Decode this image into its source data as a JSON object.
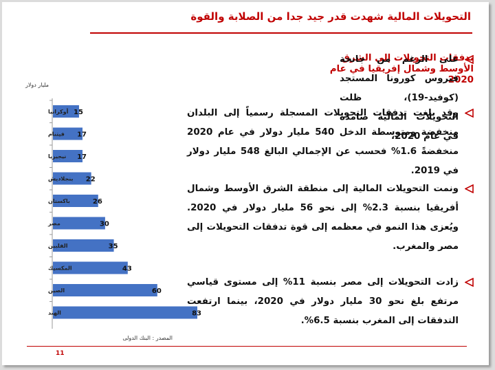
{
  "slide": {
    "title": "التحويلات المالية شهدت قدر جيد جدا من الصلابة والقوة",
    "headline": "تدفقات التحويلات إلى الشرق الأوسط وشمال إفريقيا في عام 2020",
    "bullets": [
      "على الرغم من جانحة فيروس كورونا المستجد (كوفيد-19)، ظلت التحويلات المالية صامدة في عام 2020،",
      "وقد بلغت تدفقات التحويلات المسجلة رسمياً إلى البلدان منخفضة ومتوسطة الدخل 540 مليار دولار في عام 2020 منخفضةً 1.6% فحسب عن الإجمالي البالغ 548 مليار دولار في 2019.",
      "ونمت التحويلات المالية إلى منطقة الشرق الأوسط وشمال أفريقيا بنسبة 2.3% إلى نحو 56 مليار دولار في 2020. ويُعزى هذا النمو في معظمه إلى قوة تدفقات التحويلات إلى مصر والمغرب.",
      "زادت التحويلات إلى مصر بنسبة 11% إلى مستوى قياسي مرتفع بلغ نحو 30 مليار دولار في 2020، بينما ارتفعت التدفقات إلى المغرب بنسبة 6.5%."
    ],
    "unit_label": "مليار دولار",
    "source": "المصدر : البنك الدولى",
    "page_number": "11"
  },
  "colors": {
    "bar": "#4472c4",
    "accent": "#c00000"
  },
  "chart_data": {
    "type": "bar",
    "orientation": "horizontal",
    "categories": [
      "أوكرانيا",
      "فيتنام",
      "نيجيريا",
      "بنجلاديش",
      "باكستان",
      "مصر",
      "الفلبين",
      "المكسيك",
      "الصين",
      "الهند"
    ],
    "values": [
      15,
      17,
      17,
      22,
      26,
      30,
      35,
      43,
      60,
      83
    ],
    "ylabel": "مليار دولار",
    "xlim": [
      0,
      83
    ],
    "grid": false,
    "legend": "none"
  }
}
